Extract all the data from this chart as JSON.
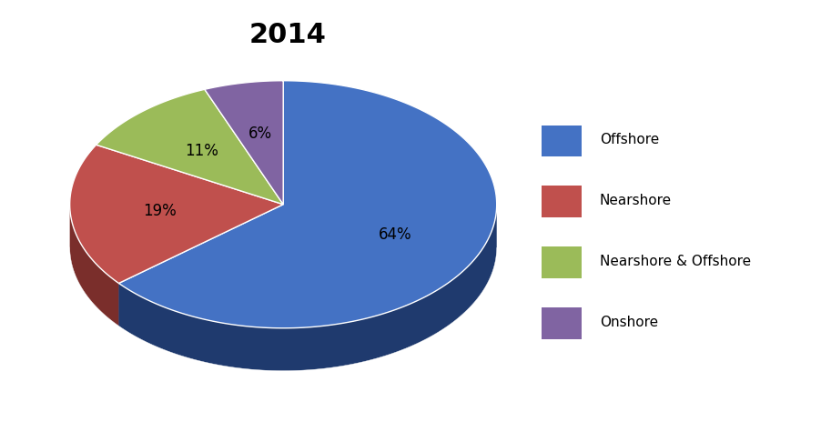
{
  "title": "2014",
  "title_fontsize": 22,
  "title_fontweight": "bold",
  "labels": [
    "Offshore",
    "Nearshore",
    "Nearshore & Offshore",
    "Onshore"
  ],
  "values": [
    64,
    19,
    11,
    6
  ],
  "colors": [
    "#4472C4",
    "#C0504D",
    "#9BBB59",
    "#8064A2"
  ],
  "shadow_colors": [
    "#1F3A6E",
    "#7A2E2B",
    "#5A7030",
    "#4A3060"
  ],
  "pct_labels": [
    "64%",
    "19%",
    "11%",
    "6%"
  ],
  "legend_labels": [
    "Offshore",
    "Nearshore",
    "Nearshore & Offshore",
    "Onshore"
  ],
  "background_color": "#FFFFFF",
  "startangle": 90,
  "label_fontsize": 12,
  "legend_fontsize": 11
}
